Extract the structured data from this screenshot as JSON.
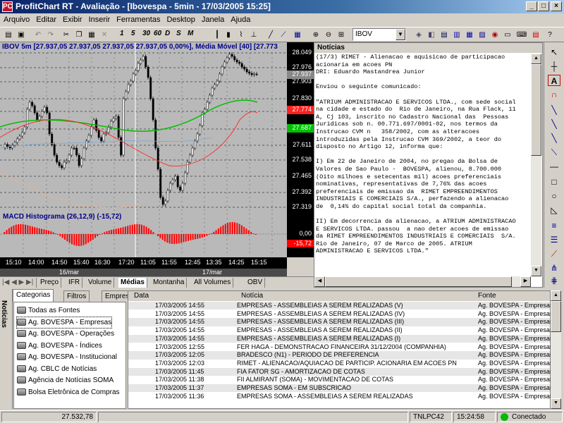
{
  "window": {
    "title": "ProfitChart RT - Avaliação - [Ibovespa - 5min - 17/03/2005 15:25]",
    "icon": "PC"
  },
  "menu": [
    "Arquivo",
    "Editar",
    "Exibir",
    "Inserir",
    "Ferramentas",
    "Desktop",
    "Janela",
    "Ajuda"
  ],
  "toolbar": {
    "period_buttons": [
      "1",
      "5",
      "30",
      "60",
      "D",
      "S",
      "M"
    ],
    "symbol": "IBOV"
  },
  "chart": {
    "header": "IBOV 5m [27.937,05 27.937,05 27.937,05 27.937,05 0,00%], Média Móvel [40] [27.773",
    "price_labels": [
      "28.049",
      "27.976",
      "27.903",
      "27.830",
      "27.757",
      "27.684",
      "27.611",
      "27.538",
      "27.465",
      "27.392",
      "27.319"
    ],
    "last_price": "27.937",
    "ma_red_label": "27.774",
    "ma_green_label": "27.687",
    "macd_header": "MACD Histograma (26,12,9) (-15,72)",
    "macd_zero": "0,00",
    "macd_last": "-15,72",
    "time_labels": [
      "15:10",
      "14:00",
      "14:50",
      "15:40",
      "16:30",
      "17:20",
      "11:05",
      "11:55",
      "12:45",
      "13:35",
      "14:25",
      "15:15"
    ],
    "date_labels": [
      "16/mar",
      "17/mar"
    ],
    "tabs": [
      "Preço",
      "IFR",
      "Volume",
      "Médias",
      "Montanha",
      "All Volumes",
      "OBV"
    ],
    "active_tab": "Médias",
    "colors": {
      "bg": "#b9b9b9",
      "candle": "#000000",
      "ma_red": "#ff3030",
      "ma_green": "#00c000",
      "macd": "#ff0000",
      "axis_bg": "#000000"
    }
  },
  "news_panel": {
    "title": "Notícias",
    "body": "(17/3) RIMET - Alienacao e aquisicao de participacao\nacionaria em acoes PN\nDRI: Eduardo Mastandrea Junior\n\nEnviou o seguinte comunicado:\n\n\"ATRIUM ADMINISTRACAO E SERVICOS LTDA., com sede social\nna cidade e estado do  Rio de Janeiro, na Rua Flack, 11\nA, Cj 103, inscrito no Cadastro Nacional das  Pessoas\nJuridicas sob n. 00.771.697/0001-02, nos termos da\nInstrucao CVM n   358/2002, com as alteracoes\nintroduzidas pela Instrucao CVM 369/2002, a teor do\ndisposto no Artigo 12, informa que:\n\nI) Em 22 de Janeiro de 2004, no pregao da Bolsa de\nValores de Sao Paulo -  BOVESPA, alienou, 8.700.000\n(Oito milhoes e setecentas mil) acoes preferenciais\nnominativas, representativas de 7,76% das acoes\npreferenciais de emissao da  RIMET EMPREENDIMENTOS\nINDUSTRIAIS E COMERCIAIS S/A., perfazendo a alienacao\nde  0,14% do capital social total da companhia.\n\nII) Em decorrencia da alienacao, a ATRIUM ADMINISTRACAO\nE SERVICOS LTDA. passou  a nao deter acoes de emissao\nda RIMET EMPREENDIMENTOS INDUSTRIAIS E COMERCIAIS  S/A.\nRio de Janeiro, 07 de Marco de 2005. ATRIUM\nADMINISTRACAO E SERVICOS LTDA.\""
  },
  "side_label": "Notícias",
  "left_tabs": [
    "Categorias",
    "Filtros",
    "Empresas"
  ],
  "sources": [
    {
      "label": "Todas as Fontes",
      "selected": false
    },
    {
      "label": "Ag. BOVESPA - Empresas",
      "selected": true
    },
    {
      "label": "Ag. BOVESPA - Operações",
      "selected": false
    },
    {
      "label": "Ag. BOVESPA - Índices",
      "selected": false
    },
    {
      "label": "Ag. BOVESPA - Institucional",
      "selected": false
    },
    {
      "label": "Ag. CBLC de Notícias",
      "selected": false
    },
    {
      "label": "Agência de Notícias SOMA",
      "selected": false
    },
    {
      "label": "Bolsa Eletrônica de Compras",
      "selected": false
    }
  ],
  "news_list": {
    "columns": [
      "Data",
      "Notícia",
      "Fonte"
    ],
    "rows": [
      [
        "17/03/2005 14:55",
        "EMPRESAS - ASSEMBLEIAS A SEREM REALIZADAS (V)",
        "Ag. BOVESPA - Empresas"
      ],
      [
        "17/03/2005 14:55",
        "EMPRESAS - ASSEMBLEIAS A SEREM REALIZADAS (IV)",
        "Ag. BOVESPA - Empresas"
      ],
      [
        "17/03/2005 14:55",
        "EMPRESAS - ASSEMBLEIAS A SEREM REALIZADAS (III)",
        "Ag. BOVESPA - Empresas"
      ],
      [
        "17/03/2005 14:55",
        "EMPRESAS - ASSEMBLEIAS A SEREM REALIZADAS (II)",
        "Ag. BOVESPA - Empresas"
      ],
      [
        "17/03/2005 14:55",
        "EMPRESAS - ASSEMBLEIAS A SEREM REALIZADAS (I)",
        "Ag. BOVESPA - Empresas"
      ],
      [
        "17/03/2005 12:55",
        "FER HAGA - DEMONSTRACAO FINANCEIRA 31/12/2004 (COMPANHIA)",
        "Ag. BOVESPA - Empresas"
      ],
      [
        "17/03/2005 12:05",
        "BRADESCO (N1) - PERIODO DE PREFERENCIA",
        "Ag. BOVESPA - Empresas"
      ],
      [
        "17/03/2005 12:03",
        "RIMET - ALIENACAO/AQUIACAO DE PARTICIP. ACIONARIA EM ACOES PN",
        "Ag. BOVESPA - Empresas"
      ],
      [
        "17/03/2005 11:45",
        "FIA FATOR SG - AMORTIZACAO DE COTAS",
        "Ag. BOVESPA - Empresas"
      ],
      [
        "17/03/2005 11:38",
        "FII ALMIRANT (SOMA) - MOVIMENTACAO DE COTAS",
        "Ag. BOVESPA - Empresas"
      ],
      [
        "17/03/2005 11:37",
        "EMPRESAS SOMA - EM SUBSCRICAO",
        "Ag. BOVESPA - Empresas"
      ],
      [
        "17/03/2005 11:36",
        "EMPRESAS SOMA - ASSEMBLEIAS A SEREM REALIZADAS",
        "Ag. BOVESPA - Empresas"
      ]
    ]
  },
  "status": {
    "value": "27.532,78",
    "station": "TNLPC42",
    "time": "15:24:58",
    "connection": "Conectado"
  }
}
